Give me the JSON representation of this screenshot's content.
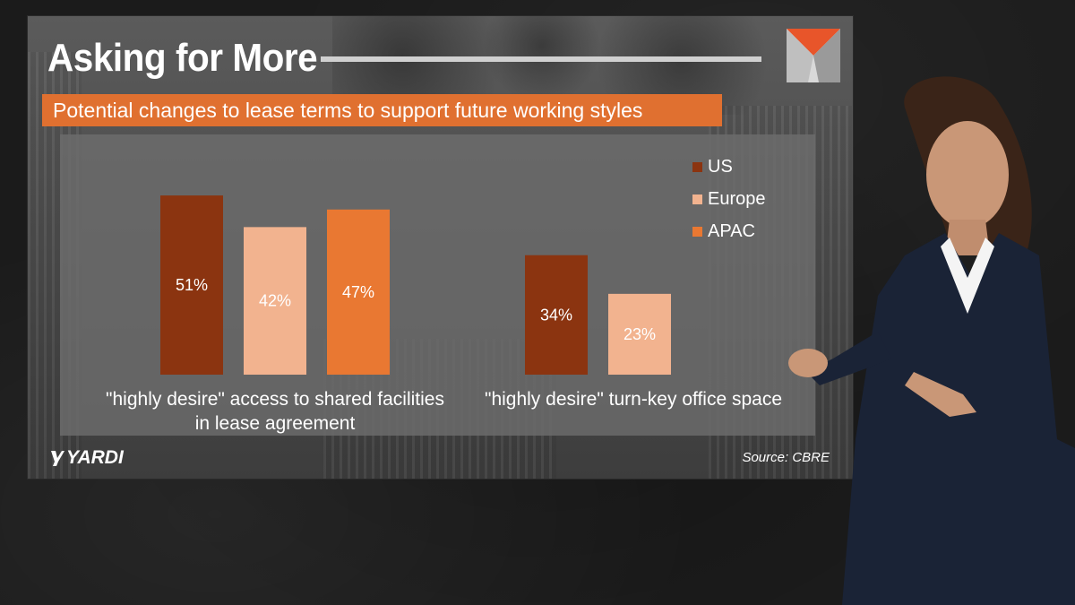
{
  "slide": {
    "title": "Asking for More",
    "subtitle": "Potential changes to lease terms to support future working styles",
    "brand": "YARDI",
    "source": "Source:  CBRE"
  },
  "colors": {
    "us": "#8b3410",
    "europe": "#f2b38f",
    "apac": "#e97832",
    "subtitle_bar": "#e07030",
    "logo_accent": "#e8552a"
  },
  "icons": [
    "yardi-logo-icon",
    "corner-logo-icon"
  ],
  "chart_data": {
    "type": "bar",
    "title": "",
    "xlabel": "",
    "ylabel": "",
    "ylim": [
      0,
      60
    ],
    "grid": false,
    "legend_placement": "top-right",
    "categories": [
      "\"highly desire\" access to shared facilities in lease agreement",
      "\"highly desire\" turn-key office space"
    ],
    "category_lines": [
      [
        "\"highly desire\" access to shared facilities",
        "in lease agreement"
      ],
      [
        "\"highly desire\" turn-key office space"
      ]
    ],
    "series": [
      {
        "name": "US",
        "values": [
          51,
          34
        ],
        "labels": [
          "51%",
          "34%"
        ]
      },
      {
        "name": "Europe",
        "values": [
          42,
          23
        ],
        "labels": [
          "42%",
          "23%"
        ]
      },
      {
        "name": "APAC",
        "values": [
          47,
          null
        ],
        "labels": [
          "47%",
          null
        ]
      }
    ]
  }
}
